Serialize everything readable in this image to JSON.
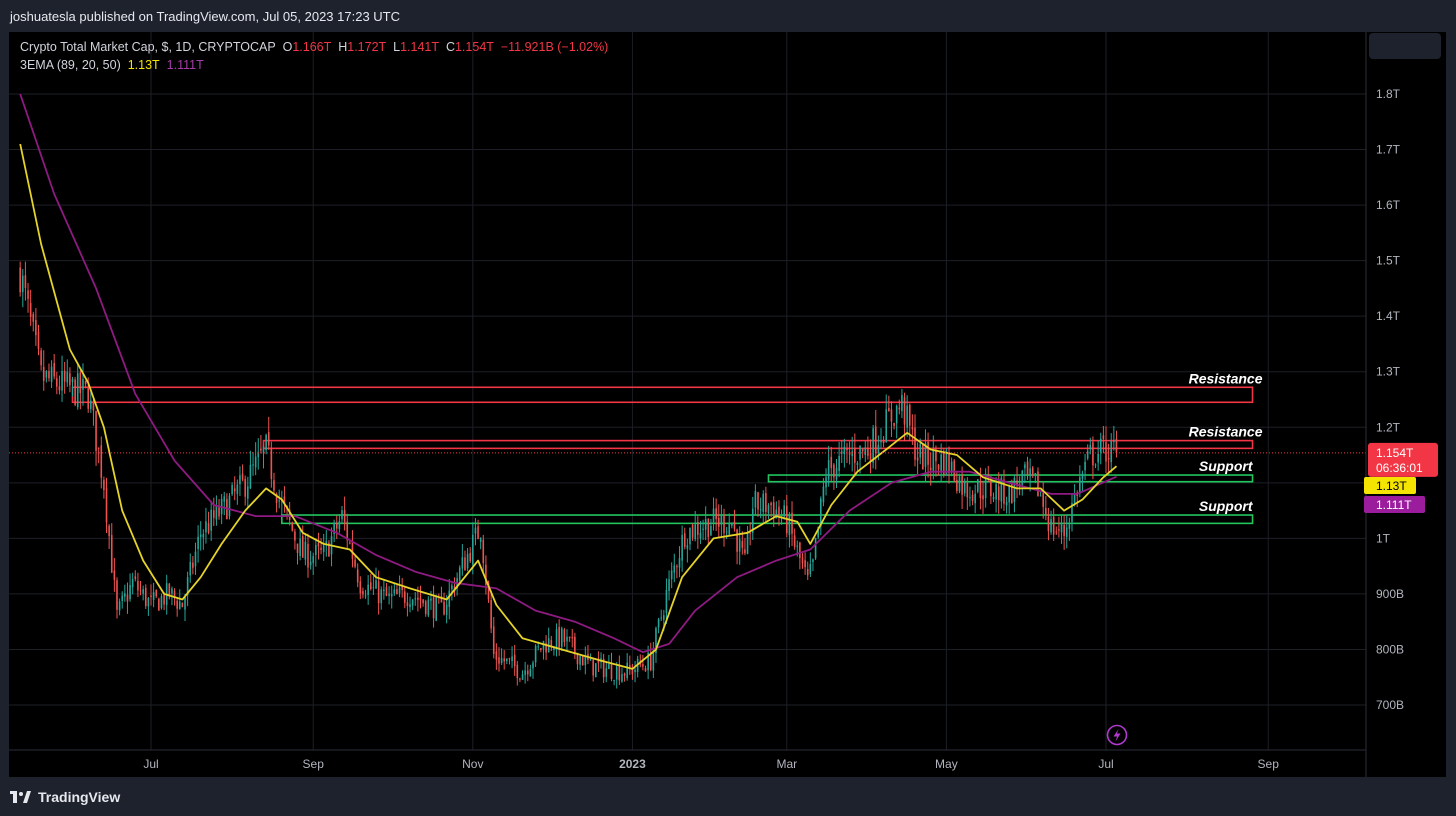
{
  "header": {
    "published": "joshuatesla published on TradingView.com, Jul 05, 2023 17:23 UTC"
  },
  "footer": {
    "brand": "TradingView"
  },
  "legend": {
    "symbol": "Crypto Total Market Cap, $, 1D, CRYPTOCAP",
    "o_label": "O",
    "o_value": "1.166T",
    "h_label": "H",
    "h_value": "1.172T",
    "l_label": "L",
    "l_value": "1.141T",
    "c_label": "C",
    "c_value": "1.154T",
    "change": "−11.921B (−1.02%)",
    "ema_label": "3EMA (89, 20, 50)",
    "ema1_value": "1.13T",
    "ema2_value": "1.111T"
  },
  "colors": {
    "up": "#26a69a",
    "down": "#ef5350",
    "ema_short": "#e5d32a",
    "ema_long": "#8e1a82",
    "resistance": "#f23645",
    "support": "#22c55e",
    "price_tag": "#f23645",
    "ema1_tag": "#f5e400",
    "ema2_tag": "#9c1c9e"
  },
  "chart_data": {
    "type": "candlestick",
    "y_unit": "Total market cap (USD)",
    "ylim": [
      630,
      1870
    ],
    "x_ticks": [
      {
        "label": "Jul",
        "x": "2022-07-01"
      },
      {
        "label": "Sep",
        "x": "2022-09-01"
      },
      {
        "label": "Nov",
        "x": "2022-11-01"
      },
      {
        "label": "2023",
        "x": "2023-01-01"
      },
      {
        "label": "Mar",
        "x": "2023-03-01"
      },
      {
        "label": "May",
        "x": "2023-05-01"
      },
      {
        "label": "Jul",
        "x": "2023-07-01"
      },
      {
        "label": "Sep",
        "x": "2023-09-01"
      }
    ],
    "y_ticks": [
      {
        "label": "700B",
        "value": 700
      },
      {
        "label": "800B",
        "value": 800
      },
      {
        "label": "900B",
        "value": 900
      },
      {
        "label": "1T",
        "value": 1000
      },
      {
        "label": "1.1T",
        "value": 1100
      },
      {
        "label": "1.2T",
        "value": 1200
      },
      {
        "label": "1.3T",
        "value": 1300
      },
      {
        "label": "1.4T",
        "value": 1400
      },
      {
        "label": "1.5T",
        "value": 1500
      },
      {
        "label": "1.6T",
        "value": 1600
      },
      {
        "label": "1.7T",
        "value": 1700
      },
      {
        "label": "1.8T",
        "value": 1800
      }
    ],
    "x_start": "2022-05-12",
    "x_end": "2023-07-05",
    "close_anchors": [
      [
        "2022-05-12",
        1480
      ],
      [
        "2022-05-20",
        1290
      ],
      [
        "2022-05-31",
        1270
      ],
      [
        "2022-06-07",
        1260
      ],
      [
        "2022-06-13",
        1100
      ],
      [
        "2022-06-18",
        860
      ],
      [
        "2022-06-24",
        920
      ],
      [
        "2022-07-01",
        880
      ],
      [
        "2022-07-08",
        900
      ],
      [
        "2022-07-13",
        880
      ],
      [
        "2022-07-20",
        1010
      ],
      [
        "2022-07-28",
        1050
      ],
      [
        "2022-08-06",
        1100
      ],
      [
        "2022-08-14",
        1160
      ],
      [
        "2022-08-19",
        1070
      ],
      [
        "2022-08-28",
        970
      ],
      [
        "2022-09-05",
        970
      ],
      [
        "2022-09-12",
        1040
      ],
      [
        "2022-09-19",
        920
      ],
      [
        "2022-09-30",
        890
      ],
      [
        "2022-10-08",
        900
      ],
      [
        "2022-10-20",
        870
      ],
      [
        "2022-10-28",
        950
      ],
      [
        "2022-11-04",
        1020
      ],
      [
        "2022-11-09",
        790
      ],
      [
        "2022-11-20",
        760
      ],
      [
        "2022-11-28",
        810
      ],
      [
        "2022-12-05",
        820
      ],
      [
        "2022-12-16",
        770
      ],
      [
        "2022-12-30",
        760
      ],
      [
        "2023-01-08",
        780
      ],
      [
        "2023-01-14",
        900
      ],
      [
        "2023-01-21",
        1010
      ],
      [
        "2023-01-31",
        1030
      ],
      [
        "2023-02-08",
        1030
      ],
      [
        "2023-02-13",
        950
      ],
      [
        "2023-02-16",
        1060
      ],
      [
        "2023-02-23",
        1060
      ],
      [
        "2023-03-01",
        1030
      ],
      [
        "2023-03-09",
        920
      ],
      [
        "2023-03-11",
        950
      ],
      [
        "2023-03-16",
        1120
      ],
      [
        "2023-03-25",
        1150
      ],
      [
        "2023-04-01",
        1160
      ],
      [
        "2023-04-10",
        1220
      ],
      [
        "2023-04-14",
        1240
      ],
      [
        "2023-04-20",
        1150
      ],
      [
        "2023-04-25",
        1140
      ],
      [
        "2023-05-01",
        1140
      ],
      [
        "2023-05-08",
        1090
      ],
      [
        "2023-05-15",
        1090
      ],
      [
        "2023-05-25",
        1080
      ],
      [
        "2023-05-30",
        1110
      ],
      [
        "2023-06-05",
        1090
      ],
      [
        "2023-06-10",
        1020
      ],
      [
        "2023-06-15",
        1010
      ],
      [
        "2023-06-20",
        1090
      ],
      [
        "2023-06-25",
        1150
      ],
      [
        "2023-07-01",
        1160
      ],
      [
        "2023-07-05",
        1154
      ]
    ],
    "ema_short_points": [
      [
        "2022-05-12",
        1710
      ],
      [
        "2022-05-20",
        1530
      ],
      [
        "2022-05-31",
        1340
      ],
      [
        "2022-06-07",
        1280
      ],
      [
        "2022-06-13",
        1200
      ],
      [
        "2022-06-20",
        1050
      ],
      [
        "2022-06-28",
        960
      ],
      [
        "2022-07-06",
        900
      ],
      [
        "2022-07-13",
        890
      ],
      [
        "2022-07-20",
        930
      ],
      [
        "2022-07-28",
        990
      ],
      [
        "2022-08-06",
        1050
      ],
      [
        "2022-08-14",
        1090
      ],
      [
        "2022-08-20",
        1070
      ],
      [
        "2022-08-28",
        1010
      ],
      [
        "2022-09-05",
        990
      ],
      [
        "2022-09-15",
        980
      ],
      [
        "2022-09-25",
        930
      ],
      [
        "2022-10-08",
        910
      ],
      [
        "2022-10-22",
        890
      ],
      [
        "2022-11-03",
        960
      ],
      [
        "2022-11-10",
        880
      ],
      [
        "2022-11-20",
        820
      ],
      [
        "2022-12-05",
        800
      ],
      [
        "2022-12-20",
        780
      ],
      [
        "2023-01-01",
        765
      ],
      [
        "2023-01-10",
        800
      ],
      [
        "2023-01-20",
        930
      ],
      [
        "2023-02-01",
        1000
      ],
      [
        "2023-02-14",
        1010
      ],
      [
        "2023-02-25",
        1040
      ],
      [
        "2023-03-05",
        1030
      ],
      [
        "2023-03-10",
        990
      ],
      [
        "2023-03-18",
        1060
      ],
      [
        "2023-03-28",
        1120
      ],
      [
        "2023-04-08",
        1160
      ],
      [
        "2023-04-16",
        1190
      ],
      [
        "2023-04-25",
        1160
      ],
      [
        "2023-05-05",
        1150
      ],
      [
        "2023-05-15",
        1110
      ],
      [
        "2023-05-28",
        1090
      ],
      [
        "2023-06-06",
        1090
      ],
      [
        "2023-06-15",
        1050
      ],
      [
        "2023-06-22",
        1070
      ],
      [
        "2023-06-30",
        1110
      ],
      [
        "2023-07-05",
        1130
      ]
    ],
    "ema_long_points": [
      [
        "2022-05-12",
        1800
      ],
      [
        "2022-05-25",
        1620
      ],
      [
        "2022-06-10",
        1450
      ],
      [
        "2022-06-25",
        1260
      ],
      [
        "2022-07-10",
        1140
      ],
      [
        "2022-07-25",
        1060
      ],
      [
        "2022-08-10",
        1040
      ],
      [
        "2022-08-25",
        1040
      ],
      [
        "2022-09-10",
        1010
      ],
      [
        "2022-09-25",
        970
      ],
      [
        "2022-10-10",
        940
      ],
      [
        "2022-10-25",
        920
      ],
      [
        "2022-11-10",
        910
      ],
      [
        "2022-11-25",
        870
      ],
      [
        "2022-12-10",
        850
      ],
      [
        "2022-12-25",
        820
      ],
      [
        "2023-01-05",
        795
      ],
      [
        "2023-01-15",
        810
      ],
      [
        "2023-01-25",
        870
      ],
      [
        "2023-02-10",
        930
      ],
      [
        "2023-02-25",
        960
      ],
      [
        "2023-03-10",
        980
      ],
      [
        "2023-03-25",
        1050
      ],
      [
        "2023-04-10",
        1100
      ],
      [
        "2023-04-25",
        1120
      ],
      [
        "2023-05-10",
        1120
      ],
      [
        "2023-05-25",
        1100
      ],
      [
        "2023-06-10",
        1080
      ],
      [
        "2023-06-20",
        1080
      ],
      [
        "2023-07-05",
        1111
      ]
    ],
    "zones": [
      {
        "kind": "resistance",
        "label": "Resistance",
        "low": 1245,
        "high": 1272,
        "start": "2022-06-01",
        "end": "2023-08-26"
      },
      {
        "kind": "resistance",
        "label": "Resistance",
        "low": 1162,
        "high": 1176,
        "start": "2022-08-13",
        "end": "2023-08-26"
      },
      {
        "kind": "support",
        "label": "Support",
        "low": 1102,
        "high": 1114,
        "start": "2023-02-22",
        "end": "2023-08-26"
      },
      {
        "kind": "support",
        "label": "Support",
        "low": 1027,
        "high": 1042,
        "start": "2022-08-20",
        "end": "2023-08-26"
      }
    ],
    "last_price": {
      "value": 1154,
      "label": "1.154T",
      "countdown": "06:36:01"
    },
    "ema_tags": [
      {
        "value": 1130,
        "label": "1.13T"
      },
      {
        "value": 1111,
        "label": "1.111T"
      }
    ]
  }
}
